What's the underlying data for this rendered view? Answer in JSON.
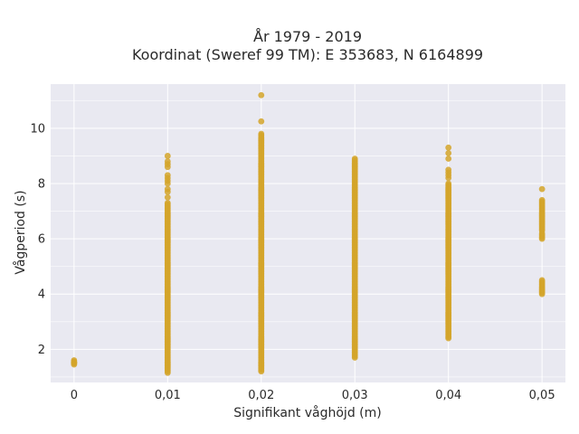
{
  "chart_data": {
    "type": "scatter",
    "title_line1": "År 1979 - 2019",
    "title_line2": "Koordinat (Sweref 99 TM): E 353683, N 6164899",
    "xlabel": "Signifikant våghöjd (m)",
    "ylabel": "Vågperiod (s)",
    "xlim": [
      -0.0025,
      0.0525
    ],
    "ylim": [
      0.8,
      11.6
    ],
    "x_ticks": [
      {
        "value": 0,
        "label": "0"
      },
      {
        "value": 0.01,
        "label": "0,01"
      },
      {
        "value": 0.02,
        "label": "0,02"
      },
      {
        "value": 0.03,
        "label": "0,03"
      },
      {
        "value": 0.04,
        "label": "0,04"
      },
      {
        "value": 0.05,
        "label": "0,05"
      }
    ],
    "y_ticks": [
      {
        "value": 2,
        "label": "2"
      },
      {
        "value": 4,
        "label": "4"
      },
      {
        "value": 6,
        "label": "6"
      },
      {
        "value": 8,
        "label": "8"
      },
      {
        "value": 10,
        "label": "10"
      }
    ],
    "grid": true,
    "marker_color": "#D4A52A",
    "plot_background": "#E9E9F1",
    "series": [
      {
        "x": 0,
        "y_ranges": [
          [
            1.45,
            1.6
          ]
        ],
        "y_points": [
          1.5,
          1.55
        ]
      },
      {
        "x": 0.01,
        "y_ranges": [
          [
            1.15,
            7.3
          ]
        ],
        "y_points": [
          7.5,
          7.7,
          7.8,
          8.0,
          8.1,
          8.2,
          8.3,
          8.6,
          8.7,
          8.8,
          9.0
        ]
      },
      {
        "x": 0.02,
        "y_ranges": [
          [
            1.2,
            9.8
          ]
        ],
        "y_points": [
          10.25,
          11.2
        ]
      },
      {
        "x": 0.03,
        "y_ranges": [
          [
            1.7,
            8.9
          ]
        ],
        "y_points": []
      },
      {
        "x": 0.04,
        "y_ranges": [
          [
            2.4,
            8.0
          ]
        ],
        "y_points": [
          8.2,
          8.3,
          8.4,
          8.5,
          8.9,
          9.1,
          9.3
        ]
      },
      {
        "x": 0.05,
        "y_ranges": [
          [
            4.0,
            4.5
          ],
          [
            6.0,
            6.2
          ],
          [
            6.3,
            7.4
          ]
        ],
        "y_points": [
          7.8
        ]
      }
    ]
  }
}
